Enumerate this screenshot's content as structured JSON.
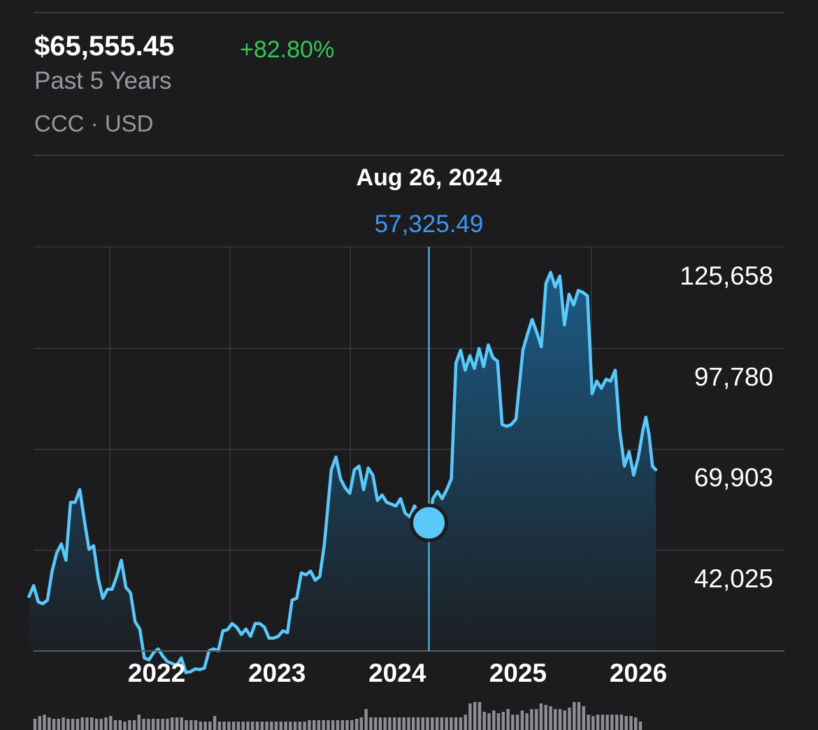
{
  "header": {
    "price": "$65,555.45",
    "change": "+82.80%",
    "period": "Past 5 Years",
    "symbol": "CCC · USD"
  },
  "selection": {
    "date": "Aug 26, 2024",
    "value_label": "57,325.49",
    "date_value": "2024-08-26",
    "value": 57325.49
  },
  "colors": {
    "background": "#1c1c1e",
    "line": "#5ac8fa",
    "positive": "#34c759",
    "selection_value": "#3b97f6",
    "grid": "#3a3a3c",
    "muted_text": "#98989d",
    "volume": "#8e8e93"
  },
  "chart_data": {
    "type": "area",
    "ylim": [
      14000,
      140000
    ],
    "xlim": [
      "2021-05-01",
      "2026-06-15"
    ],
    "grid": true,
    "y_ticks": [
      {
        "value": 125658,
        "label": "125,658"
      },
      {
        "value": 97780,
        "label": "97,780"
      },
      {
        "value": 69903,
        "label": "69,903"
      },
      {
        "value": 42025,
        "label": "42,025"
      }
    ],
    "x_ticks": [
      {
        "x": "2022-01-01",
        "label": "2022"
      },
      {
        "x": "2023-01-01",
        "label": "2023"
      },
      {
        "x": "2024-01-01",
        "label": "2024"
      },
      {
        "x": "2025-01-01",
        "label": "2025"
      },
      {
        "x": "2026-01-01",
        "label": "2026"
      }
    ],
    "series": [
      {
        "points": [
          [
            "2021-05-01",
            37000
          ],
          [
            "2021-05-15",
            40000
          ],
          [
            "2021-05-29",
            35500
          ],
          [
            "2021-06-12",
            35000
          ],
          [
            "2021-06-26",
            36000
          ],
          [
            "2021-07-10",
            44000
          ],
          [
            "2021-07-24",
            49000
          ],
          [
            "2021-08-07",
            51500
          ],
          [
            "2021-08-21",
            47000
          ],
          [
            "2021-09-04",
            63000
          ],
          [
            "2021-09-18",
            63000
          ],
          [
            "2021-10-02",
            66500
          ],
          [
            "2021-10-16",
            58000
          ],
          [
            "2021-10-30",
            50000
          ],
          [
            "2021-11-13",
            51000
          ],
          [
            "2021-11-27",
            42000
          ],
          [
            "2021-12-11",
            36500
          ],
          [
            "2021-12-25",
            39000
          ],
          [
            "2022-01-08",
            39000
          ],
          [
            "2022-01-22",
            42500
          ],
          [
            "2022-02-05",
            47000
          ],
          [
            "2022-02-19",
            39500
          ],
          [
            "2022-03-05",
            38000
          ],
          [
            "2022-03-19",
            30000
          ],
          [
            "2022-04-02",
            28000
          ],
          [
            "2022-04-16",
            20000
          ],
          [
            "2022-04-30",
            19500
          ],
          [
            "2022-05-14",
            21500
          ],
          [
            "2022-05-28",
            22500
          ],
          [
            "2022-06-11",
            20500
          ],
          [
            "2022-06-25",
            19000
          ],
          [
            "2022-07-09",
            18500
          ],
          [
            "2022-07-23",
            18000
          ],
          [
            "2022-08-06",
            20000
          ],
          [
            "2022-08-20",
            16000
          ],
          [
            "2022-09-03",
            16200
          ],
          [
            "2022-09-17",
            17000
          ],
          [
            "2022-10-01",
            16800
          ],
          [
            "2022-10-15",
            17200
          ],
          [
            "2022-10-29",
            22000
          ],
          [
            "2022-11-12",
            22500
          ],
          [
            "2022-11-26",
            22000
          ],
          [
            "2022-12-10",
            27500
          ],
          [
            "2022-12-24",
            27800
          ],
          [
            "2023-01-07",
            29500
          ],
          [
            "2023-01-21",
            28500
          ],
          [
            "2023-02-04",
            26500
          ],
          [
            "2023-02-18",
            28000
          ],
          [
            "2023-03-04",
            26000
          ],
          [
            "2023-03-18",
            29500
          ],
          [
            "2023-04-01",
            29500
          ],
          [
            "2023-04-15",
            28500
          ],
          [
            "2023-04-29",
            25500
          ],
          [
            "2023-05-13",
            25500
          ],
          [
            "2023-05-27",
            26000
          ],
          [
            "2023-06-10",
            27500
          ],
          [
            "2023-06-24",
            27000
          ],
          [
            "2023-07-08",
            36000
          ],
          [
            "2023-07-22",
            36500
          ],
          [
            "2023-08-05",
            43500
          ],
          [
            "2023-08-19",
            43000
          ],
          [
            "2023-09-02",
            44000
          ],
          [
            "2023-09-16",
            41500
          ],
          [
            "2023-09-30",
            42500
          ],
          [
            "2023-10-14",
            51500
          ],
          [
            "2023-11-04",
            72000
          ],
          [
            "2023-11-18",
            75500
          ],
          [
            "2023-12-02",
            69500
          ],
          [
            "2023-12-16",
            67000
          ],
          [
            "2023-12-30",
            65500
          ],
          [
            "2024-01-13",
            72000
          ],
          [
            "2024-01-27",
            73000
          ],
          [
            "2024-02-10",
            66500
          ],
          [
            "2024-02-24",
            72500
          ],
          [
            "2024-03-09",
            70500
          ],
          [
            "2024-03-23",
            63500
          ],
          [
            "2024-04-06",
            65000
          ],
          [
            "2024-04-20",
            63000
          ],
          [
            "2024-05-04",
            62500
          ],
          [
            "2024-05-18",
            62000
          ],
          [
            "2024-06-01",
            64000
          ],
          [
            "2024-06-15",
            60000
          ],
          [
            "2024-06-29",
            59000
          ],
          [
            "2024-07-13",
            62000
          ],
          [
            "2024-07-27",
            60000
          ],
          [
            "2024-08-10",
            58000
          ],
          [
            "2024-08-26",
            57325.49
          ],
          [
            "2024-09-07",
            64000
          ],
          [
            "2024-09-21",
            66000
          ],
          [
            "2024-10-05",
            64000
          ],
          [
            "2024-10-19",
            66500
          ],
          [
            "2024-11-02",
            69500
          ],
          [
            "2024-11-16",
            101500
          ],
          [
            "2024-11-30",
            105000
          ],
          [
            "2024-12-14",
            99500
          ],
          [
            "2024-12-28",
            103500
          ],
          [
            "2025-01-11",
            100000
          ],
          [
            "2025-01-25",
            105500
          ],
          [
            "2025-02-08",
            100500
          ],
          [
            "2025-02-22",
            106500
          ],
          [
            "2025-03-08",
            103000
          ],
          [
            "2025-03-22",
            102000
          ],
          [
            "2025-04-05",
            84500
          ],
          [
            "2025-04-19",
            84000
          ],
          [
            "2025-05-03",
            84500
          ],
          [
            "2025-05-17",
            86000
          ],
          [
            "2025-06-07",
            105000
          ],
          [
            "2025-06-21",
            109500
          ],
          [
            "2025-07-05",
            113500
          ],
          [
            "2025-07-19",
            110000
          ],
          [
            "2025-08-02",
            106000
          ],
          [
            "2025-08-16",
            123500
          ],
          [
            "2025-08-30",
            126500
          ],
          [
            "2025-09-13",
            122500
          ],
          [
            "2025-09-27",
            125500
          ],
          [
            "2025-10-11",
            112000
          ],
          [
            "2025-10-25",
            120500
          ],
          [
            "2025-11-08",
            117500
          ],
          [
            "2025-11-22",
            121500
          ],
          [
            "2025-12-06",
            121000
          ],
          [
            "2025-12-20",
            120000
          ],
          [
            "2026-01-03",
            93000
          ],
          [
            "2026-01-17",
            96500
          ],
          [
            "2026-01-31",
            94500
          ],
          [
            "2026-02-14",
            97000
          ],
          [
            "2026-02-28",
            96500
          ],
          [
            "2026-03-14",
            99500
          ],
          [
            "2026-03-28",
            82500
          ],
          [
            "2026-04-11",
            73000
          ],
          [
            "2026-04-25",
            77000
          ],
          [
            "2026-05-09",
            70500
          ],
          [
            "2026-05-23",
            75500
          ],
          [
            "2026-06-06",
            83000
          ],
          [
            "2026-06-15",
            86500
          ],
          [
            "2026-06-25",
            81500
          ],
          [
            "2026-07-05",
            73000
          ],
          [
            "2026-07-15",
            72000
          ]
        ]
      }
    ],
    "volume": [
      0.4,
      0.5,
      0.55,
      0.45,
      0.4,
      0.4,
      0.45,
      0.4,
      0.4,
      0.4,
      0.45,
      0.45,
      0.45,
      0.4,
      0.4,
      0.45,
      0.5,
      0.35,
      0.35,
      0.3,
      0.35,
      0.35,
      0.55,
      0.4,
      0.4,
      0.4,
      0.4,
      0.4,
      0.4,
      0.45,
      0.45,
      0.45,
      0.35,
      0.35,
      0.35,
      0.3,
      0.3,
      0.3,
      0.5,
      0.3,
      0.3,
      0.3,
      0.3,
      0.3,
      0.3,
      0.3,
      0.3,
      0.3,
      0.3,
      0.3,
      0.3,
      0.3,
      0.3,
      0.3,
      0.3,
      0.3,
      0.3,
      0.3,
      0.35,
      0.35,
      0.35,
      0.35,
      0.35,
      0.35,
      0.35,
      0.35,
      0.35,
      0.35,
      0.4,
      0.45,
      0.75,
      0.45,
      0.45,
      0.45,
      0.45,
      0.45,
      0.45,
      0.45,
      0.45,
      0.45,
      0.45,
      0.45,
      0.45,
      0.45,
      0.45,
      0.45,
      0.45,
      0.45,
      0.45,
      0.45,
      0.45,
      0.55,
      0.95,
      1.0,
      1.0,
      0.65,
      0.6,
      0.7,
      0.6,
      0.65,
      0.75,
      0.55,
      0.55,
      0.7,
      0.6,
      0.75,
      0.75,
      0.95,
      0.9,
      0.85,
      0.75,
      0.75,
      0.7,
      0.8,
      1.0,
      1.0,
      0.85,
      0.55,
      0.5,
      0.55,
      0.55,
      0.55,
      0.55,
      0.55,
      0.55,
      0.5,
      0.5,
      0.45,
      0.3
    ]
  }
}
